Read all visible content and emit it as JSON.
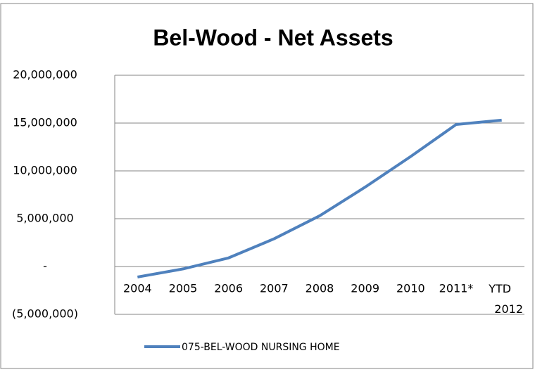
{
  "chart_data": {
    "type": "line",
    "title": "Bel-Wood - Net Assets",
    "categories": [
      "2004",
      "2005",
      "2006",
      "2007",
      "2008",
      "2009",
      "2010",
      "2011*",
      "YTD 2012"
    ],
    "series": [
      {
        "name": "075-BEL-WOOD NURSING HOME",
        "color": "#4f81bd",
        "values": [
          -1100000,
          -250000,
          900000,
          2900000,
          5300000,
          8300000,
          11500000,
          14850000,
          15300000
        ]
      }
    ],
    "ylim": [
      -5000000,
      20000000
    ],
    "yticks": [
      {
        "value": -5000000,
        "label": "(5,000,000)"
      },
      {
        "value": 0,
        "label": "-"
      },
      {
        "value": 5000000,
        "label": "5,000,000"
      },
      {
        "value": 10000000,
        "label": "10,000,000"
      },
      {
        "value": 15000000,
        "label": "15,000,000"
      },
      {
        "value": 20000000,
        "label": "20,000,000"
      }
    ],
    "grid": true
  }
}
